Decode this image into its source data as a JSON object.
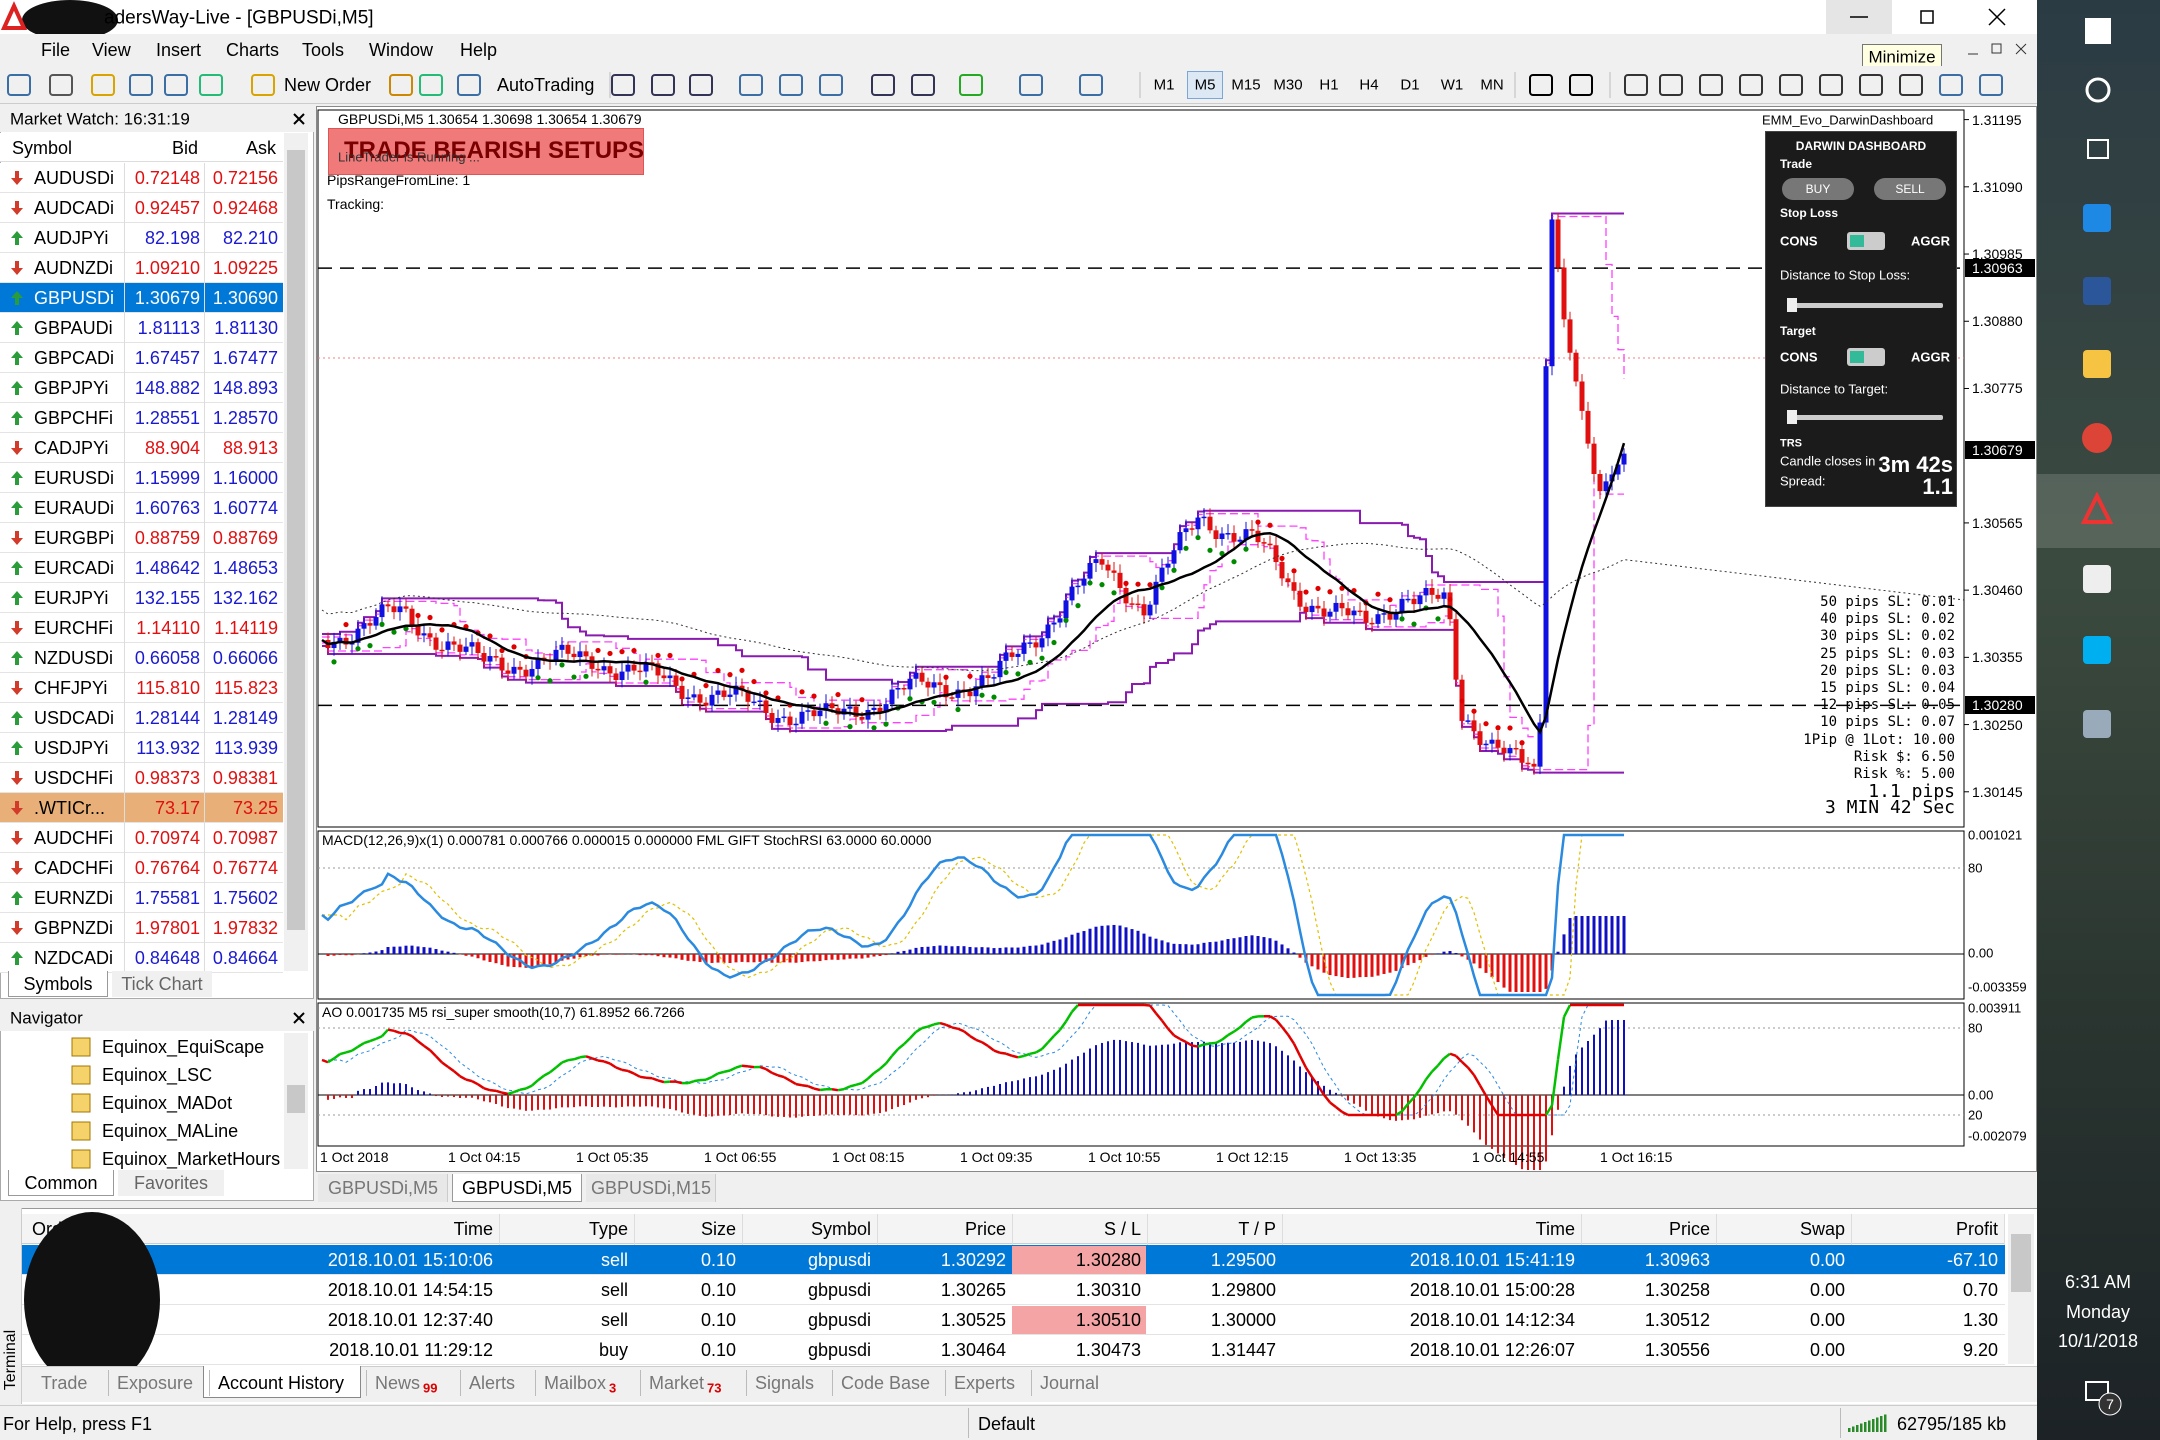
{
  "window": {
    "title": "adersWay-Live - [GBPUSDi,M5]",
    "tooltip": "Minimize"
  },
  "menu": [
    "File",
    "View",
    "Insert",
    "Charts",
    "Tools",
    "Window",
    "Help"
  ],
  "toolbar": {
    "new_order": "New Order",
    "auto_trading": "AutoTrading",
    "timeframes": [
      "M1",
      "M5",
      "M15",
      "M30",
      "H1",
      "H4",
      "D1",
      "W1",
      "MN"
    ],
    "active_timeframe": 1
  },
  "market_watch": {
    "title": "Market Watch: 16:31:19",
    "columns": [
      "Symbol",
      "Bid",
      "Ask"
    ],
    "rows": [
      {
        "symbol": "AUDUSDi",
        "bid": "0.72148",
        "ask": "0.72156",
        "trend": "down",
        "color": "#e01010"
      },
      {
        "symbol": "AUDCADi",
        "bid": "0.92457",
        "ask": "0.92468",
        "trend": "down",
        "color": "#e01010"
      },
      {
        "symbol": "AUDJPYi",
        "bid": "82.198",
        "ask": "82.210",
        "trend": "up",
        "color": "#1a1ad0"
      },
      {
        "symbol": "AUDNZDi",
        "bid": "1.09210",
        "ask": "1.09225",
        "trend": "down",
        "color": "#e01010"
      },
      {
        "symbol": "GBPUSDi",
        "bid": "1.30679",
        "ask": "1.30690",
        "trend": "up",
        "color": "#ffffff",
        "selected": true
      },
      {
        "symbol": "GBPAUDi",
        "bid": "1.81113",
        "ask": "1.81130",
        "trend": "up",
        "color": "#1a1ad0"
      },
      {
        "symbol": "GBPCADi",
        "bid": "1.67457",
        "ask": "1.67477",
        "trend": "up",
        "color": "#1a1ad0"
      },
      {
        "symbol": "GBPJPYi",
        "bid": "148.882",
        "ask": "148.893",
        "trend": "up",
        "color": "#1a1ad0"
      },
      {
        "symbol": "GBPCHFi",
        "bid": "1.28551",
        "ask": "1.28570",
        "trend": "up",
        "color": "#1a1ad0"
      },
      {
        "symbol": "CADJPYi",
        "bid": "88.904",
        "ask": "88.913",
        "trend": "down",
        "color": "#e01010"
      },
      {
        "symbol": "EURUSDi",
        "bid": "1.15999",
        "ask": "1.16000",
        "trend": "up",
        "color": "#1a1ad0"
      },
      {
        "symbol": "EURAUDi",
        "bid": "1.60763",
        "ask": "1.60774",
        "trend": "up",
        "color": "#1a1ad0"
      },
      {
        "symbol": "EURGBPi",
        "bid": "0.88759",
        "ask": "0.88769",
        "trend": "down",
        "color": "#e01010"
      },
      {
        "symbol": "EURCADi",
        "bid": "1.48642",
        "ask": "1.48653",
        "trend": "up",
        "color": "#1a1ad0"
      },
      {
        "symbol": "EURJPYi",
        "bid": "132.155",
        "ask": "132.162",
        "trend": "up",
        "color": "#1a1ad0"
      },
      {
        "symbol": "EURCHFi",
        "bid": "1.14110",
        "ask": "1.14119",
        "trend": "down",
        "color": "#e01010"
      },
      {
        "symbol": "NZDUSDi",
        "bid": "0.66058",
        "ask": "0.66066",
        "trend": "up",
        "color": "#1a1ad0"
      },
      {
        "symbol": "CHFJPYi",
        "bid": "115.810",
        "ask": "115.823",
        "trend": "down",
        "color": "#e01010"
      },
      {
        "symbol": "USDCADi",
        "bid": "1.28144",
        "ask": "1.28149",
        "trend": "up",
        "color": "#1a1ad0"
      },
      {
        "symbol": "USDJPYi",
        "bid": "113.932",
        "ask": "113.939",
        "trend": "up",
        "color": "#1a1ad0"
      },
      {
        "symbol": "USDCHFi",
        "bid": "0.98373",
        "ask": "0.98381",
        "trend": "down",
        "color": "#e01010"
      },
      {
        "symbol": ".WTICr...",
        "bid": "73.17",
        "ask": "73.25",
        "trend": "down",
        "color": "#e01010",
        "highlight": true
      },
      {
        "symbol": "AUDCHFi",
        "bid": "0.70974",
        "ask": "0.70987",
        "trend": "down",
        "color": "#e01010"
      },
      {
        "symbol": "CADCHFi",
        "bid": "0.76764",
        "ask": "0.76774",
        "trend": "down",
        "color": "#e01010"
      },
      {
        "symbol": "EURNZDi",
        "bid": "1.75581",
        "ask": "1.75602",
        "trend": "up",
        "color": "#1a1ad0"
      },
      {
        "symbol": "GBPNZDi",
        "bid": "1.97801",
        "ask": "1.97832",
        "trend": "down",
        "color": "#e01010"
      },
      {
        "symbol": "NZDCADi",
        "bid": "0.84648",
        "ask": "0.84664",
        "trend": "up",
        "color": "#1a1ad0"
      }
    ],
    "tabs": [
      "Symbols",
      "Tick Chart"
    ]
  },
  "navigator": {
    "title": "Navigator",
    "items": [
      "Equinox_EquiScape",
      "Equinox_LSC",
      "Equinox_MADot",
      "Equinox_MALine",
      "Equinox_MarketHours"
    ],
    "tabs": [
      "Common",
      "Favorites"
    ]
  },
  "chart": {
    "header": "GBPUSDi,M5  1.30654 1.30698 1.30654 1.30679",
    "banner": "TRADE BEARISH SETUPS",
    "info": [
      "LineTrader is Running ...",
      "PipsRangeFromLine: 1",
      "Tracking:"
    ],
    "ylim": [
      1.3009,
      1.3121
    ],
    "yticks": [
      1.31195,
      {
        "value": 1.3109,
        "label": "1.31090"
      },
      1.30985,
      {
        "value": 1.3088,
        "label": "1.30880"
      },
      1.30775,
      1.30565,
      {
        "value": 1.3046,
        "label": "1.30460"
      },
      1.30355,
      {
        "value": 1.3025,
        "label": "1.30250"
      },
      1.30145
    ],
    "price_markers": [
      1.30963,
      1.30679,
      {
        "value": 1.3028,
        "label": "1.30280"
      }
    ],
    "dashed_levels": [
      1.30963,
      {
        "value": 1.3028,
        "label": "1.30280"
      }
    ],
    "dashboard": {
      "name": "EMM_Evo_DarwinDashboard",
      "title": "DARWIN DASHBOARD",
      "trade": "Trade",
      "buy": "BUY",
      "sell": "SELL",
      "stop_loss": "Stop Loss",
      "cons": "CONS",
      "aggr": "AGGR",
      "distance_sl": "Distance to Stop Loss:",
      "target": "Target",
      "distance_target": "Distance to Target:",
      "trs": "TRS",
      "candle": "Candle closes in",
      "countdown": "3m 42s",
      "spread_label": "Spread:",
      "spread": "1.1"
    },
    "risk_info": [
      "50 pips SL: 0.01",
      "40 pips SL: 0.02",
      "30 pips SL: 0.02",
      "25 pips SL: 0.03",
      "20 pips SL: 0.03",
      "15 pips SL: 0.04",
      "12 pips SL: 0.05",
      "10 pips SL: 0.07",
      "1Pip @ 1Lot: 10.00",
      "Risk $: 6.50",
      "Risk %: 5.00"
    ],
    "risk_big": [
      "1.1 pips",
      "3 MIN 42 Sec"
    ],
    "macd": {
      "label": "MACD(12,26,9)x(1) 0.000781 0.000766 0.000015 0.000000  FML GIFT StochRSI 63.0000 60.0000",
      "axis": [
        "0.001021",
        "80",
        "0.00",
        "-0.003359"
      ]
    },
    "ao": {
      "label": "AO 0.001735  M5  rsi_super smooth(10,7) 61.8952 66.7266",
      "axis": [
        "0.003911",
        "80",
        "0.00",
        "20",
        "-0.002079"
      ]
    },
    "time_labels": [
      "1 Oct 2018",
      "1 Oct 04:15",
      "1 Oct 05:35",
      "1 Oct 06:55",
      "1 Oct 08:15",
      "1 Oct 09:35",
      "1 Oct 10:55",
      "1 Oct 12:15",
      "1 Oct 13:35",
      "1 Oct 14:55",
      "1 Oct 16:15"
    ],
    "tabs": [
      "GBPUSDi,M5",
      "GBPUSDi,M5",
      "GBPUSDi,M15"
    ],
    "active_tab": 1
  },
  "terminal": {
    "label": "Terminal",
    "columns": [
      "Order",
      "Time",
      "Type",
      "Size",
      "Symbol",
      "Price",
      "S / L",
      "T / P",
      "Time",
      "Price",
      "Swap",
      "Profit"
    ],
    "rows": [
      [
        "2018.10.01 15:10:06",
        "sell",
        "0.10",
        "gbpusdi",
        "1.30292",
        "1.30280",
        "1.29500",
        "2018.10.01 15:41:19",
        "1.30963",
        "0.00",
        "-67.10"
      ],
      [
        "2018.10.01 14:54:15",
        "sell",
        "0.10",
        "gbpusdi",
        "1.30265",
        "1.30310",
        "1.29800",
        "2018.10.01 15:00:28",
        "1.30258",
        "0.00",
        "0.70"
      ],
      [
        "2018.10.01 12:37:40",
        "sell",
        "0.10",
        "gbpusdi",
        "1.30525",
        "1.30510",
        "1.30000",
        "2018.10.01 14:12:34",
        "1.30512",
        "0.00",
        "1.30"
      ],
      [
        "2018.10.01 11:29:12",
        "buy",
        "0.10",
        "gbpusdi",
        "1.30464",
        "1.30473",
        "1.31447",
        "2018.10.01 12:26:07",
        "1.30556",
        "0.00",
        "9.20"
      ]
    ],
    "selected_row": 0,
    "highlight_sl": [
      0,
      2
    ],
    "tabs": [
      {
        "label": "Trade"
      },
      {
        "label": "Exposure"
      },
      {
        "label": "Account History"
      },
      {
        "label": "News",
        "badge": "99"
      },
      {
        "label": "Alerts"
      },
      {
        "label": "Mailbox",
        "badge": "3"
      },
      {
        "label": "Market",
        "badge": "73"
      },
      {
        "label": "Signals"
      },
      {
        "label": "Code Base"
      },
      {
        "label": "Experts"
      },
      {
        "label": "Journal"
      }
    ],
    "active_tab": 2
  },
  "status": {
    "help": "For Help, press F1",
    "profile": "Default",
    "traffic": "62795/185 kb"
  },
  "taskbar": {
    "time": "6:31 AM",
    "day": "Monday",
    "date": "10/1/2018",
    "notifications": "7"
  }
}
